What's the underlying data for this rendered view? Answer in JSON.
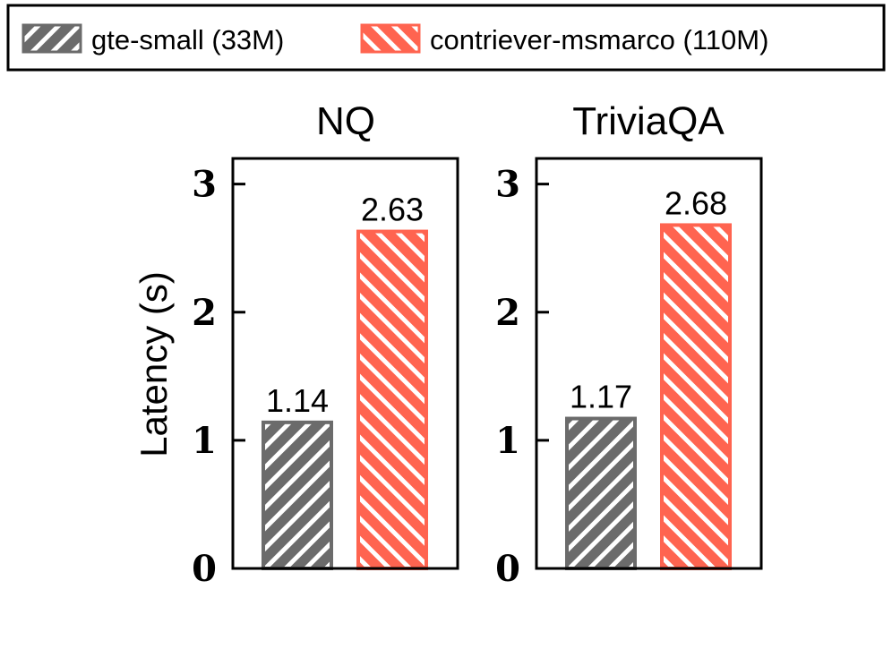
{
  "colors": {
    "gte": "#6b6b6b",
    "contriever": "#ff6450",
    "hatch": "#ffffff",
    "frame": "#000000"
  },
  "legend": {
    "items": [
      {
        "label": "gte-small (33M)",
        "color": "#6b6b6b"
      },
      {
        "label": "contriever-msmarco (110M)",
        "color": "#ff6450"
      }
    ]
  },
  "chart_data": [
    {
      "type": "bar",
      "title": "NQ",
      "ylabel": "Latency (s)",
      "ylim": [
        0,
        3.2
      ],
      "yticks": [
        0,
        1,
        2,
        3
      ],
      "yticklabels": [
        "0",
        "1",
        "2",
        "3"
      ],
      "categories": [
        "gte-small (33M)",
        "contriever-msmarco (110M)"
      ],
      "values": [
        1.14,
        2.63
      ],
      "value_labels": [
        "1.14",
        "2.63"
      ],
      "colors": [
        "#6b6b6b",
        "#ff6450"
      ],
      "hatch": [
        "//",
        "\\\\"
      ],
      "grid": false,
      "legend_position": "top"
    },
    {
      "type": "bar",
      "title": "TriviaQA",
      "ylabel": "",
      "ylim": [
        0,
        3.2
      ],
      "yticks": [
        0,
        1,
        2,
        3
      ],
      "yticklabels": [
        "0",
        "1",
        "2",
        "3"
      ],
      "categories": [
        "gte-small (33M)",
        "contriever-msmarco (110M)"
      ],
      "values": [
        1.17,
        2.68
      ],
      "value_labels": [
        "1.17",
        "2.68"
      ],
      "colors": [
        "#6b6b6b",
        "#ff6450"
      ],
      "hatch": [
        "//",
        "\\\\"
      ],
      "grid": false,
      "legend_position": "top"
    }
  ]
}
